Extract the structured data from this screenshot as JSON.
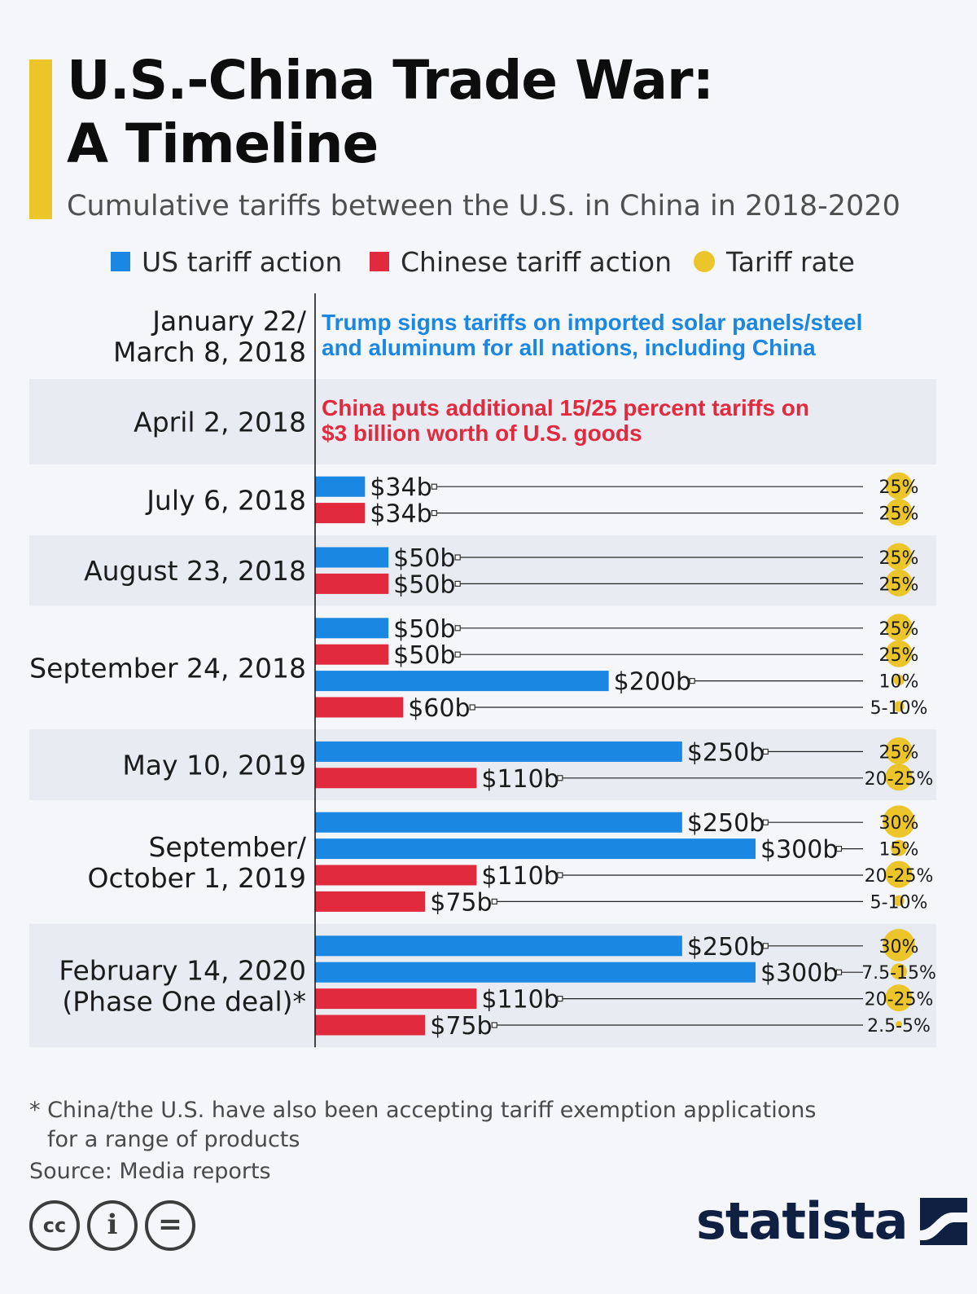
{
  "header": {
    "title_line1": "U.S.-China Trade War:",
    "title_line2": "A Timeline",
    "subtitle": "Cumulative tariffs between the U.S. in China in 2018-2020"
  },
  "legend": {
    "us": "US tariff action",
    "china": "Chinese tariff action",
    "rate": "Tariff rate"
  },
  "colors": {
    "us": "#1a87e2",
    "china": "#e22a3f",
    "rate": "#ecc52b",
    "band": "#e8ecf2",
    "us_text": "#1a87e2",
    "china_text": "#e22a3f"
  },
  "chart_data": {
    "type": "bar",
    "orientation": "horizontal",
    "title": "U.S.-China Trade War: A Timeline",
    "value_unit": "billion USD",
    "xlim": [
      0,
      380
    ],
    "groups": [
      {
        "label_lines": [
          "January 22/",
          "March 8, 2018"
        ],
        "shaded": false,
        "text_note": {
          "side": "us",
          "lines": [
            "Trump signs tariffs on imported solar panels/steel",
            "and aluminum for all nations, including China"
          ]
        },
        "bars": []
      },
      {
        "label_lines": [
          "April 2, 2018"
        ],
        "shaded": true,
        "text_note": {
          "side": "china",
          "lines": [
            "China puts additional 15/25 percent tariffs on",
            "$3 billion worth of U.S. goods"
          ]
        },
        "bars": []
      },
      {
        "label_lines": [
          "July 6, 2018"
        ],
        "shaded": false,
        "bars": [
          {
            "side": "us",
            "value": 34,
            "label": "$34b",
            "rate": "25%",
            "rate_value": 25
          },
          {
            "side": "china",
            "value": 34,
            "label": "$34b",
            "rate": "25%",
            "rate_value": 25
          }
        ]
      },
      {
        "label_lines": [
          "August 23, 2018"
        ],
        "shaded": true,
        "bars": [
          {
            "side": "us",
            "value": 50,
            "label": "$50b",
            "rate": "25%",
            "rate_value": 25
          },
          {
            "side": "china",
            "value": 50,
            "label": "$50b",
            "rate": "25%",
            "rate_value": 25
          }
        ]
      },
      {
        "label_lines": [
          "September 24, 2018"
        ],
        "shaded": false,
        "bars": [
          {
            "side": "us",
            "value": 50,
            "label": "$50b",
            "rate": "25%",
            "rate_value": 25
          },
          {
            "side": "china",
            "value": 50,
            "label": "$50b",
            "rate": "25%",
            "rate_value": 25
          },
          {
            "side": "us",
            "value": 200,
            "label": "$200b",
            "rate": "10%",
            "rate_value": 10
          },
          {
            "side": "china",
            "value": 60,
            "label": "$60b",
            "rate": "5-10%",
            "rate_value": 10
          }
        ]
      },
      {
        "label_lines": [
          "May 10, 2019"
        ],
        "shaded": true,
        "bars": [
          {
            "side": "us",
            "value": 250,
            "label": "$250b",
            "rate": "25%",
            "rate_value": 25
          },
          {
            "side": "china",
            "value": 110,
            "label": "$110b",
            "rate": "20-25%",
            "rate_value": 25
          }
        ]
      },
      {
        "label_lines": [
          "September/",
          "October 1, 2019"
        ],
        "shaded": false,
        "bars": [
          {
            "side": "us",
            "value": 250,
            "label": "$250b",
            "rate": "30%",
            "rate_value": 30
          },
          {
            "side": "us",
            "value": 300,
            "label": "$300b",
            "rate": "15%",
            "rate_value": 15
          },
          {
            "side": "china",
            "value": 110,
            "label": "$110b",
            "rate": "20-25%",
            "rate_value": 25
          },
          {
            "side": "china",
            "value": 75,
            "label": "$75b",
            "rate": "5-10%",
            "rate_value": 10
          }
        ]
      },
      {
        "label_lines": [
          "February 14, 2020",
          "(Phase One deal)*"
        ],
        "shaded": true,
        "bars": [
          {
            "side": "us",
            "value": 250,
            "label": "$250b",
            "rate": "30%",
            "rate_value": 30
          },
          {
            "side": "us",
            "value": 300,
            "label": "$300b",
            "rate": "7.5-15%",
            "rate_value": 15
          },
          {
            "side": "china",
            "value": 110,
            "label": "$110b",
            "rate": "20-25%",
            "rate_value": 25
          },
          {
            "side": "china",
            "value": 75,
            "label": "$75b",
            "rate": "2.5-5%",
            "rate_value": 5
          }
        ]
      }
    ]
  },
  "footer": {
    "footnote_line1": "* China/the U.S. have also been accepting tariff exemption applications",
    "footnote_line2": "for a range of products",
    "source": "Source: Media reports",
    "cc_label": "cc",
    "by_label": "i",
    "nd_label": "=",
    "brand": "statista"
  }
}
